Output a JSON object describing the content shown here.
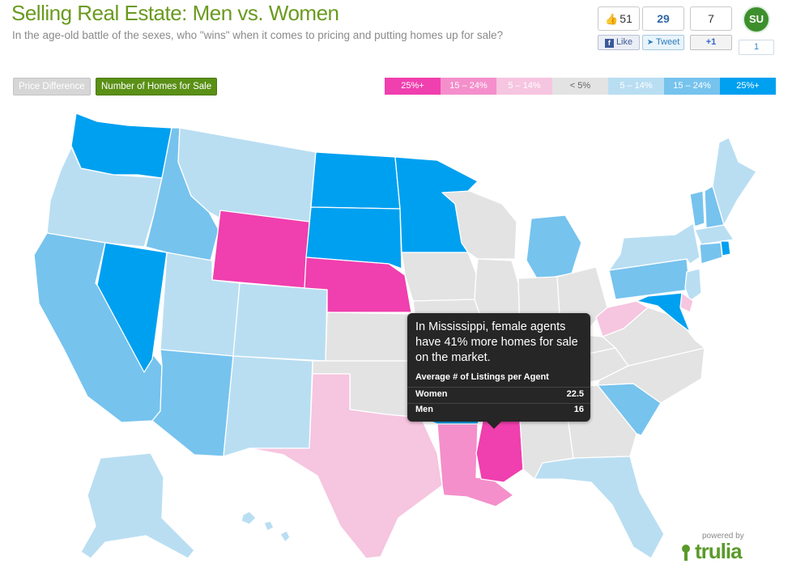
{
  "header": {
    "title": "Selling Real Estate: Men vs. Women",
    "subtitle": "In the age-old battle of the sexes, who \"wins\" when it comes to pricing and putting homes up for sale?"
  },
  "share": {
    "facebook": {
      "count": "51",
      "label": "Like",
      "icon": "thumbs-up-icon"
    },
    "twitter": {
      "count": "29",
      "label": "Tweet",
      "icon": "twitter-bird-icon"
    },
    "google": {
      "count": "7",
      "label": "+1"
    },
    "stumbleupon": {
      "logo": "SU",
      "count": "1"
    }
  },
  "modes": {
    "price_difference": "Price Difference",
    "homes_for_sale": "Number of Homes for Sale",
    "active": "homes_for_sale"
  },
  "legend": [
    {
      "label": "25%+",
      "color": "#f03fae",
      "text_color": "#ffffff"
    },
    {
      "label": "15 – 24%",
      "color": "#f48fcb",
      "text_color": "#ffffff"
    },
    {
      "label": "5 – 14%",
      "color": "#f6c5e0",
      "text_color": "#ffffff"
    },
    {
      "label": "< 5%",
      "color": "#e3e3e3",
      "text_color": "#666666"
    },
    {
      "label": "5 – 14%",
      "color": "#b9def2",
      "text_color": "#ffffff"
    },
    {
      "label": "15 – 24%",
      "color": "#76c3ee",
      "text_color": "#ffffff"
    },
    {
      "label": "25%+",
      "color": "#00a0f0",
      "text_color": "#ffffff"
    }
  ],
  "state_colors": {
    "WA": "#00a0f0",
    "OR": "#b9def2",
    "CA": "#76c3ee",
    "NV": "#00a0f0",
    "ID": "#76c3ee",
    "MT": "#b9def2",
    "WY": "#f03fae",
    "UT": "#b9def2",
    "AZ": "#76c3ee",
    "CO": "#b9def2",
    "NM": "#b9def2",
    "ND": "#00a0f0",
    "SD": "#00a0f0",
    "NE": "#f03fae",
    "KS": "#e3e3e3",
    "OK": "#e3e3e3",
    "TX": "#f6c5e0",
    "MN": "#00a0f0",
    "IA": "#e3e3e3",
    "MO": "#e3e3e3",
    "AR": "#00a0f0",
    "LA": "#f48fcb",
    "WI": "#e3e3e3",
    "IL": "#e3e3e3",
    "MI": "#76c3ee",
    "IN": "#e3e3e3",
    "OH": "#e3e3e3",
    "KY": "#e3e3e3",
    "TN": "#e3e3e3",
    "MS": "#f03fae",
    "AL": "#e3e3e3",
    "GA": "#e3e3e3",
    "FL": "#b9def2",
    "SC": "#76c3ee",
    "NC": "#e3e3e3",
    "VA": "#e3e3e3",
    "WV": "#f6c5e0",
    "PA": "#76c3ee",
    "NY": "#b9def2",
    "VT": "#76c3ee",
    "NH": "#76c3ee",
    "ME": "#b9def2",
    "MA": "#b9def2",
    "CT": "#76c3ee",
    "RI": "#00a0f0",
    "NJ": "#b9def2",
    "DE": "#f6c5e0",
    "MD": "#00a0f0",
    "AK": "#b9def2",
    "HI": "#b9def2"
  },
  "tooltip": {
    "headline": "In Mississippi, female agents have 41% more homes for sale on the market.",
    "table_title": "Average # of Listings per Agent",
    "women_label": "Women",
    "women_value": "22.5",
    "men_label": "Men",
    "men_value": "16"
  },
  "branding": {
    "powered_by": "powered by",
    "logo": "trulia"
  }
}
